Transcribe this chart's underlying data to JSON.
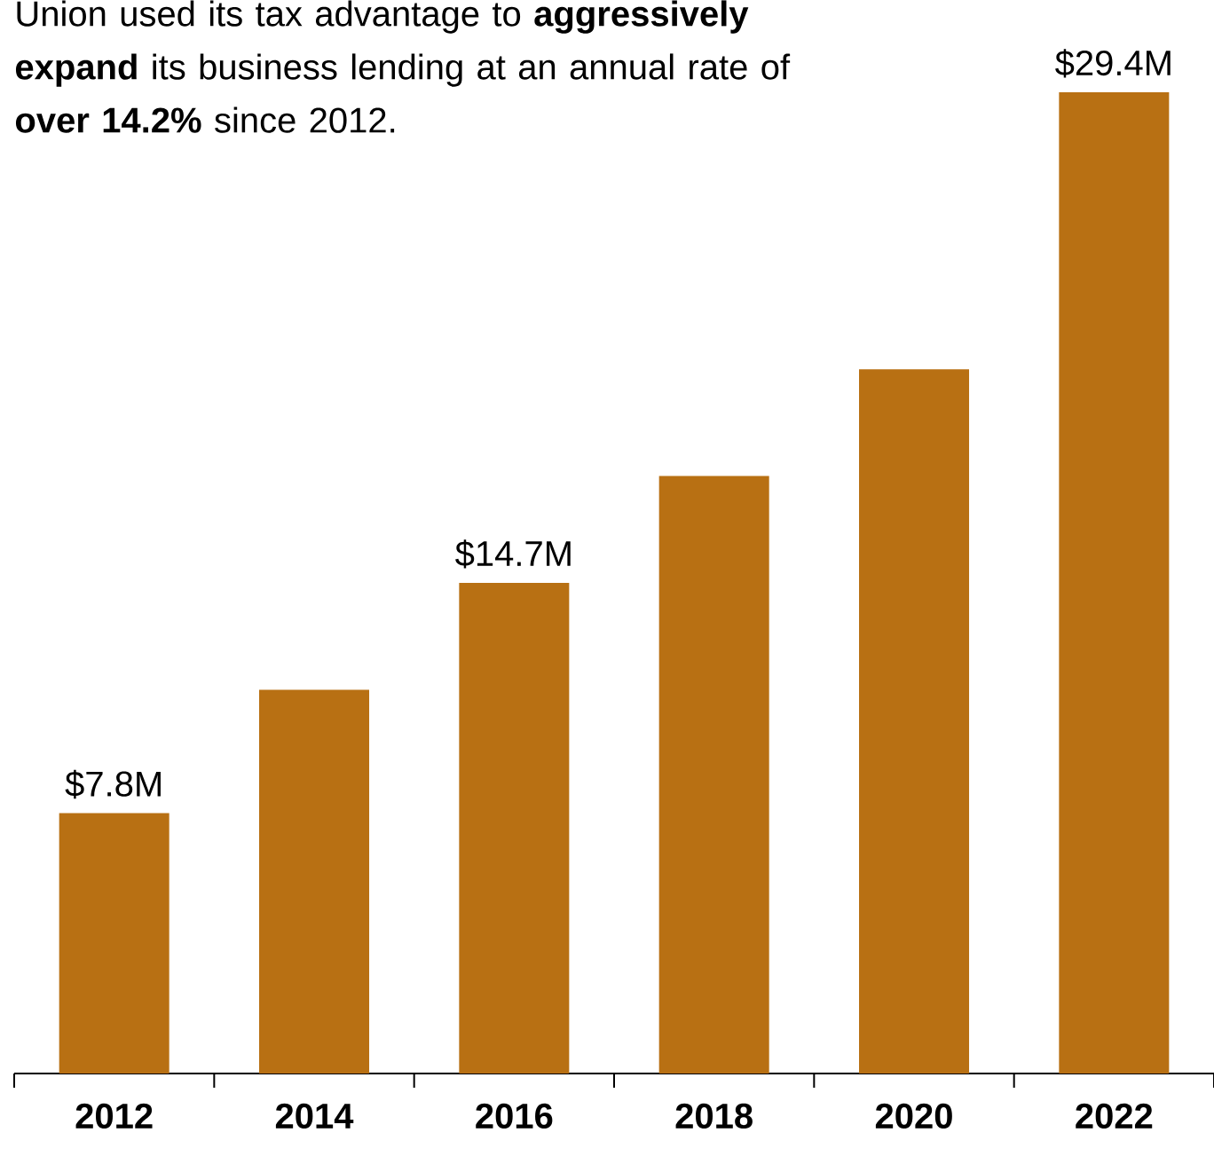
{
  "chart_data": {
    "type": "bar",
    "annotations": [
      "Union used its tax advantage to **aggressively expand** its business lending at an annual rate of **over 14.2%** since 2012."
    ],
    "categories": [
      "2012",
      "2014",
      "2016",
      "2018",
      "2020",
      "2022"
    ],
    "values": [
      7.8,
      11.5,
      14.7,
      17.9,
      21.1,
      29.4
    ],
    "value_labels": [
      "$7.8M",
      null,
      "$14.7M",
      null,
      null,
      "$29.4M"
    ],
    "color": "#b87013"
  }
}
